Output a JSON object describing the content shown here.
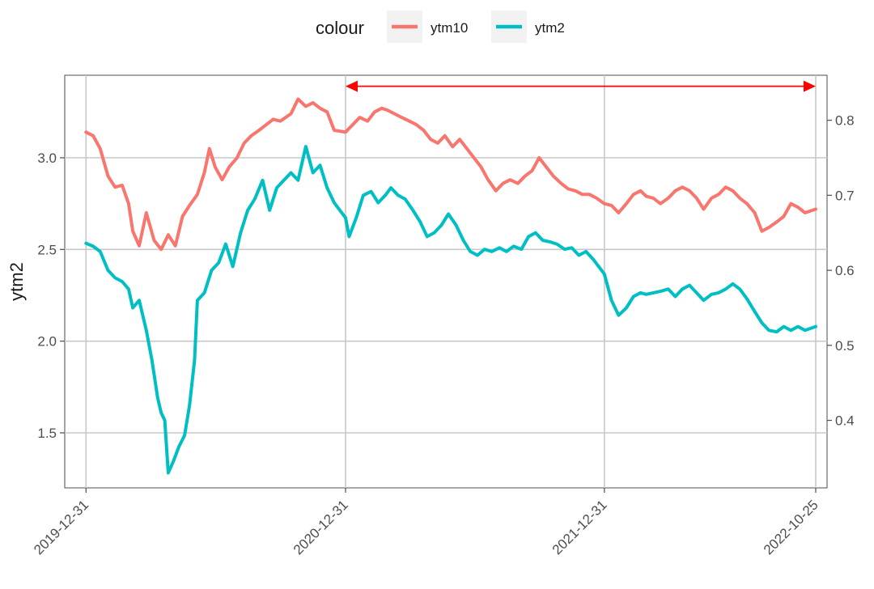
{
  "chart_data": {
    "type": "line",
    "title": "",
    "xlabel": "",
    "ylabel": "ytm2",
    "ylabel_right": "",
    "legend": {
      "title": "colour",
      "position": "top",
      "entries": [
        {
          "label": "ytm10",
          "color": "#F8766D"
        },
        {
          "label": "ytm2",
          "color": "#00BFC4"
        }
      ]
    },
    "grid": true,
    "x_axis": {
      "type": "date",
      "range": [
        "2019-12-01",
        "2022-11-10"
      ],
      "ticks": [
        "2019-12-31",
        "2020-12-31",
        "2021-12-31",
        "2022-10-25"
      ]
    },
    "y_left": {
      "range": [
        1.2,
        3.45
      ],
      "ticks": [
        1.5,
        2.0,
        2.5,
        3.0
      ],
      "tick_labels": [
        "1.5",
        "2.0",
        "2.5",
        "3.0"
      ]
    },
    "y_right": {
      "range": [
        0.31,
        0.86
      ],
      "ticks": [
        0.4,
        0.5,
        0.6,
        0.7,
        0.8
      ],
      "tick_labels": [
        "0.4",
        "0.5",
        "0.6",
        "0.7",
        "0.8"
      ]
    },
    "annotation": {
      "type": "double-arrow",
      "from": "2020-12-31",
      "to": "2022-10-25",
      "y_left": 3.39,
      "color": "#FF0000"
    },
    "series": [
      {
        "name": "ytm10",
        "color": "#F8766D",
        "axis": "left",
        "points": [
          [
            "2019-12-31",
            3.14
          ],
          [
            "2020-01-10",
            3.12
          ],
          [
            "2020-01-20",
            3.05
          ],
          [
            "2020-01-31",
            2.9
          ],
          [
            "2020-02-10",
            2.84
          ],
          [
            "2020-02-20",
            2.85
          ],
          [
            "2020-02-29",
            2.75
          ],
          [
            "2020-03-06",
            2.6
          ],
          [
            "2020-03-15",
            2.52
          ],
          [
            "2020-03-25",
            2.7
          ],
          [
            "2020-04-05",
            2.55
          ],
          [
            "2020-04-15",
            2.5
          ],
          [
            "2020-04-25",
            2.58
          ],
          [
            "2020-05-05",
            2.52
          ],
          [
            "2020-05-15",
            2.68
          ],
          [
            "2020-05-25",
            2.74
          ],
          [
            "2020-06-05",
            2.8
          ],
          [
            "2020-06-15",
            2.92
          ],
          [
            "2020-06-22",
            3.05
          ],
          [
            "2020-06-30",
            2.95
          ],
          [
            "2020-07-10",
            2.88
          ],
          [
            "2020-07-20",
            2.95
          ],
          [
            "2020-07-31",
            3.0
          ],
          [
            "2020-08-10",
            3.08
          ],
          [
            "2020-08-20",
            3.12
          ],
          [
            "2020-08-31",
            3.15
          ],
          [
            "2020-09-10",
            3.18
          ],
          [
            "2020-09-20",
            3.21
          ],
          [
            "2020-09-30",
            3.2
          ],
          [
            "2020-10-15",
            3.24
          ],
          [
            "2020-10-25",
            3.32
          ],
          [
            "2020-11-05",
            3.28
          ],
          [
            "2020-11-15",
            3.3
          ],
          [
            "2020-11-25",
            3.27
          ],
          [
            "2020-12-05",
            3.25
          ],
          [
            "2020-12-15",
            3.15
          ],
          [
            "2020-12-31",
            3.14
          ],
          [
            "2021-01-10",
            3.18
          ],
          [
            "2021-01-20",
            3.22
          ],
          [
            "2021-01-31",
            3.2
          ],
          [
            "2021-02-10",
            3.25
          ],
          [
            "2021-02-20",
            3.27
          ],
          [
            "2021-02-28",
            3.26
          ],
          [
            "2021-03-10",
            3.24
          ],
          [
            "2021-03-20",
            3.22
          ],
          [
            "2021-03-31",
            3.2
          ],
          [
            "2021-04-10",
            3.18
          ],
          [
            "2021-04-20",
            3.15
          ],
          [
            "2021-04-30",
            3.1
          ],
          [
            "2021-05-10",
            3.08
          ],
          [
            "2021-05-20",
            3.12
          ],
          [
            "2021-05-31",
            3.06
          ],
          [
            "2021-06-10",
            3.1
          ],
          [
            "2021-06-20",
            3.05
          ],
          [
            "2021-06-30",
            3.0
          ],
          [
            "2021-07-10",
            2.95
          ],
          [
            "2021-07-20",
            2.88
          ],
          [
            "2021-07-31",
            2.82
          ],
          [
            "2021-08-10",
            2.86
          ],
          [
            "2021-08-20",
            2.88
          ],
          [
            "2021-08-31",
            2.86
          ],
          [
            "2021-09-10",
            2.9
          ],
          [
            "2021-09-20",
            2.93
          ],
          [
            "2021-09-30",
            3.0
          ],
          [
            "2021-10-10",
            2.95
          ],
          [
            "2021-10-20",
            2.9
          ],
          [
            "2021-10-31",
            2.86
          ],
          [
            "2021-11-10",
            2.83
          ],
          [
            "2021-11-20",
            2.82
          ],
          [
            "2021-11-30",
            2.8
          ],
          [
            "2021-12-10",
            2.8
          ],
          [
            "2021-12-20",
            2.78
          ],
          [
            "2021-12-31",
            2.75
          ],
          [
            "2022-01-10",
            2.74
          ],
          [
            "2022-01-20",
            2.7
          ],
          [
            "2022-01-31",
            2.75
          ],
          [
            "2022-02-10",
            2.8
          ],
          [
            "2022-02-20",
            2.82
          ],
          [
            "2022-02-28",
            2.79
          ],
          [
            "2022-03-10",
            2.78
          ],
          [
            "2022-03-20",
            2.75
          ],
          [
            "2022-03-31",
            2.78
          ],
          [
            "2022-04-10",
            2.82
          ],
          [
            "2022-04-20",
            2.84
          ],
          [
            "2022-04-30",
            2.82
          ],
          [
            "2022-05-10",
            2.78
          ],
          [
            "2022-05-20",
            2.72
          ],
          [
            "2022-05-31",
            2.78
          ],
          [
            "2022-06-10",
            2.8
          ],
          [
            "2022-06-20",
            2.84
          ],
          [
            "2022-06-30",
            2.82
          ],
          [
            "2022-07-10",
            2.78
          ],
          [
            "2022-07-20",
            2.75
          ],
          [
            "2022-07-31",
            2.7
          ],
          [
            "2022-08-10",
            2.6
          ],
          [
            "2022-08-20",
            2.62
          ],
          [
            "2022-08-31",
            2.65
          ],
          [
            "2022-09-10",
            2.68
          ],
          [
            "2022-09-20",
            2.75
          ],
          [
            "2022-09-30",
            2.73
          ],
          [
            "2022-10-10",
            2.7
          ],
          [
            "2022-10-25",
            2.72
          ]
        ]
      },
      {
        "name": "ytm2",
        "color": "#00BFC4",
        "axis": "right",
        "points": [
          [
            "2019-12-31",
            0.636
          ],
          [
            "2020-01-10",
            0.632
          ],
          [
            "2020-01-20",
            0.625
          ],
          [
            "2020-01-31",
            0.6
          ],
          [
            "2020-02-10",
            0.59
          ],
          [
            "2020-02-20",
            0.585
          ],
          [
            "2020-02-29",
            0.575
          ],
          [
            "2020-03-06",
            0.55
          ],
          [
            "2020-03-15",
            0.56
          ],
          [
            "2020-03-25",
            0.52
          ],
          [
            "2020-04-02",
            0.48
          ],
          [
            "2020-04-10",
            0.43
          ],
          [
            "2020-04-15",
            0.41
          ],
          [
            "2020-04-20",
            0.4
          ],
          [
            "2020-04-25",
            0.33
          ],
          [
            "2020-05-02",
            0.345
          ],
          [
            "2020-05-10",
            0.365
          ],
          [
            "2020-05-18",
            0.38
          ],
          [
            "2020-05-25",
            0.42
          ],
          [
            "2020-06-01",
            0.48
          ],
          [
            "2020-06-05",
            0.56
          ],
          [
            "2020-06-15",
            0.57
          ],
          [
            "2020-06-25",
            0.6
          ],
          [
            "2020-07-05",
            0.61
          ],
          [
            "2020-07-15",
            0.635
          ],
          [
            "2020-07-25",
            0.605
          ],
          [
            "2020-08-05",
            0.65
          ],
          [
            "2020-08-15",
            0.68
          ],
          [
            "2020-08-25",
            0.695
          ],
          [
            "2020-09-05",
            0.72
          ],
          [
            "2020-09-15",
            0.68
          ],
          [
            "2020-09-25",
            0.71
          ],
          [
            "2020-10-05",
            0.72
          ],
          [
            "2020-10-15",
            0.73
          ],
          [
            "2020-10-25",
            0.72
          ],
          [
            "2020-11-05",
            0.765
          ],
          [
            "2020-11-15",
            0.73
          ],
          [
            "2020-11-25",
            0.74
          ],
          [
            "2020-12-05",
            0.71
          ],
          [
            "2020-12-15",
            0.69
          ],
          [
            "2020-12-31",
            0.67
          ],
          [
            "2021-01-05",
            0.645
          ],
          [
            "2021-01-15",
            0.67
          ],
          [
            "2021-01-25",
            0.7
          ],
          [
            "2021-02-05",
            0.705
          ],
          [
            "2021-02-15",
            0.69
          ],
          [
            "2021-02-25",
            0.7
          ],
          [
            "2021-03-05",
            0.71
          ],
          [
            "2021-03-15",
            0.7
          ],
          [
            "2021-03-25",
            0.695
          ],
          [
            "2021-04-05",
            0.68
          ],
          [
            "2021-04-15",
            0.665
          ],
          [
            "2021-04-25",
            0.645
          ],
          [
            "2021-05-05",
            0.65
          ],
          [
            "2021-05-15",
            0.66
          ],
          [
            "2021-05-25",
            0.675
          ],
          [
            "2021-06-05",
            0.66
          ],
          [
            "2021-06-15",
            0.64
          ],
          [
            "2021-06-25",
            0.625
          ],
          [
            "2021-07-05",
            0.62
          ],
          [
            "2021-07-15",
            0.628
          ],
          [
            "2021-07-25",
            0.625
          ],
          [
            "2021-08-05",
            0.63
          ],
          [
            "2021-08-15",
            0.625
          ],
          [
            "2021-08-25",
            0.632
          ],
          [
            "2021-09-05",
            0.628
          ],
          [
            "2021-09-15",
            0.645
          ],
          [
            "2021-09-25",
            0.65
          ],
          [
            "2021-10-05",
            0.64
          ],
          [
            "2021-10-15",
            0.638
          ],
          [
            "2021-10-25",
            0.635
          ],
          [
            "2021-11-05",
            0.628
          ],
          [
            "2021-11-15",
            0.63
          ],
          [
            "2021-11-25",
            0.62
          ],
          [
            "2021-12-05",
            0.625
          ],
          [
            "2021-12-15",
            0.615
          ],
          [
            "2021-12-31",
            0.595
          ],
          [
            "2022-01-10",
            0.56
          ],
          [
            "2022-01-20",
            0.54
          ],
          [
            "2022-01-31",
            0.55
          ],
          [
            "2022-02-10",
            0.565
          ],
          [
            "2022-02-20",
            0.57
          ],
          [
            "2022-02-28",
            0.568
          ],
          [
            "2022-03-10",
            0.57
          ],
          [
            "2022-03-20",
            0.572
          ],
          [
            "2022-03-31",
            0.575
          ],
          [
            "2022-04-10",
            0.565
          ],
          [
            "2022-04-20",
            0.575
          ],
          [
            "2022-04-30",
            0.58
          ],
          [
            "2022-05-10",
            0.57
          ],
          [
            "2022-05-20",
            0.56
          ],
          [
            "2022-05-31",
            0.568
          ],
          [
            "2022-06-10",
            0.57
          ],
          [
            "2022-06-20",
            0.575
          ],
          [
            "2022-06-30",
            0.582
          ],
          [
            "2022-07-10",
            0.575
          ],
          [
            "2022-07-20",
            0.562
          ],
          [
            "2022-07-31",
            0.545
          ],
          [
            "2022-08-10",
            0.53
          ],
          [
            "2022-08-20",
            0.52
          ],
          [
            "2022-08-31",
            0.518
          ],
          [
            "2022-09-10",
            0.525
          ],
          [
            "2022-09-20",
            0.52
          ],
          [
            "2022-09-30",
            0.525
          ],
          [
            "2022-10-10",
            0.52
          ],
          [
            "2022-10-25",
            0.525
          ]
        ]
      }
    ]
  }
}
